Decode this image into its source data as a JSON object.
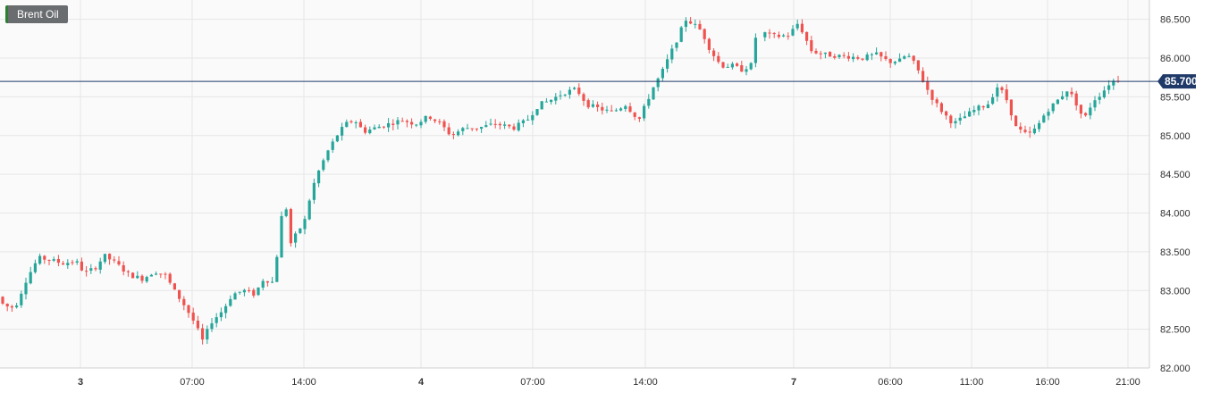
{
  "symbol": "Brent Oil",
  "last_price_label": "85.700",
  "colors": {
    "up": "#26a69a",
    "down": "#ef5350",
    "price_line": "#1f3a68",
    "grid": "#e6e6e6",
    "axis_text": "#333333"
  },
  "chart_data": {
    "type": "candlestick",
    "title": "",
    "xlabel": "",
    "ylabel": "",
    "ylim": [
      82.0,
      86.75
    ],
    "y_ticks": [
      "82.000",
      "82.500",
      "83.000",
      "83.500",
      "84.000",
      "84.500",
      "85.000",
      "85.500",
      "86.000",
      "86.500"
    ],
    "x_ticks": [
      "3",
      "07:00",
      "14:00",
      "4",
      "07:00",
      "14:00",
      "7",
      "06:00",
      "11:00",
      "16:00",
      "21:00"
    ],
    "last_price": 85.7,
    "grid": true,
    "price_path": [
      [
        0,
        82.95
      ],
      [
        10,
        82.8
      ],
      [
        22,
        82.78
      ],
      [
        35,
        83.15
      ],
      [
        48,
        83.42
      ],
      [
        60,
        83.4
      ],
      [
        75,
        83.35
      ],
      [
        90,
        83.38
      ],
      [
        100,
        83.22
      ],
      [
        112,
        83.3
      ],
      [
        122,
        83.45
      ],
      [
        135,
        83.35
      ],
      [
        150,
        83.2
      ],
      [
        165,
        83.15
      ],
      [
        178,
        83.25
      ],
      [
        190,
        83.2
      ],
      [
        200,
        83.0
      ],
      [
        212,
        82.8
      ],
      [
        222,
        82.6
      ],
      [
        232,
        82.35
      ],
      [
        242,
        82.6
      ],
      [
        255,
        82.75
      ],
      [
        265,
        82.95
      ],
      [
        278,
        83.0
      ],
      [
        290,
        82.95
      ],
      [
        300,
        83.15
      ],
      [
        312,
        83.1
      ],
      [
        318,
        83.8
      ],
      [
        324,
        84.2
      ],
      [
        330,
        83.6
      ],
      [
        338,
        83.75
      ],
      [
        346,
        83.9
      ],
      [
        354,
        84.3
      ],
      [
        362,
        84.55
      ],
      [
        372,
        84.8
      ],
      [
        382,
        85.0
      ],
      [
        392,
        85.15
      ],
      [
        402,
        85.2
      ],
      [
        412,
        85.05
      ],
      [
        425,
        85.1
      ],
      [
        440,
        85.15
      ],
      [
        455,
        85.2
      ],
      [
        470,
        85.15
      ],
      [
        485,
        85.25
      ],
      [
        498,
        85.15
      ],
      [
        510,
        85.0
      ],
      [
        525,
        85.1
      ],
      [
        540,
        85.1
      ],
      [
        560,
        85.15
      ],
      [
        580,
        85.1
      ],
      [
        595,
        85.2
      ],
      [
        608,
        85.4
      ],
      [
        620,
        85.45
      ],
      [
        635,
        85.55
      ],
      [
        650,
        85.6
      ],
      [
        662,
        85.4
      ],
      [
        675,
        85.35
      ],
      [
        690,
        85.3
      ],
      [
        705,
        85.4
      ],
      [
        720,
        85.2
      ],
      [
        735,
        85.6
      ],
      [
        745,
        85.8
      ],
      [
        755,
        86.05
      ],
      [
        765,
        86.3
      ],
      [
        772,
        86.5
      ],
      [
        780,
        86.45
      ],
      [
        790,
        86.35
      ],
      [
        800,
        86.1
      ],
      [
        812,
        85.9
      ],
      [
        825,
        85.9
      ],
      [
        835,
        85.85
      ],
      [
        847,
        85.92
      ],
      [
        853,
        86.5
      ],
      [
        862,
        86.3
      ],
      [
        875,
        86.28
      ],
      [
        888,
        86.3
      ],
      [
        898,
        86.45
      ],
      [
        905,
        86.3
      ],
      [
        912,
        86.1
      ],
      [
        925,
        86.05
      ],
      [
        940,
        86.03
      ],
      [
        955,
        86.02
      ],
      [
        970,
        86.0
      ],
      [
        985,
        86.05
      ],
      [
        1000,
        85.95
      ],
      [
        1012,
        85.97
      ],
      [
        1020,
        86.05
      ],
      [
        1030,
        85.9
      ],
      [
        1040,
        85.65
      ],
      [
        1050,
        85.45
      ],
      [
        1060,
        85.3
      ],
      [
        1072,
        85.15
      ],
      [
        1085,
        85.25
      ],
      [
        1098,
        85.35
      ],
      [
        1110,
        85.4
      ],
      [
        1122,
        85.65
      ],
      [
        1132,
        85.45
      ],
      [
        1142,
        85.1
      ],
      [
        1155,
        85.0
      ],
      [
        1165,
        85.1
      ],
      [
        1175,
        85.3
      ],
      [
        1188,
        85.45
      ],
      [
        1200,
        85.6
      ],
      [
        1210,
        85.4
      ],
      [
        1218,
        85.2
      ],
      [
        1228,
        85.45
      ],
      [
        1238,
        85.55
      ],
      [
        1248,
        85.7
      ],
      [
        1258,
        85.72
      ]
    ]
  }
}
